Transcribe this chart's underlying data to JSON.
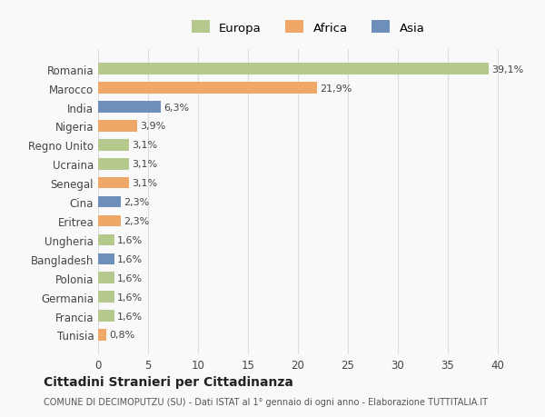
{
  "countries": [
    "Romania",
    "Marocco",
    "India",
    "Nigeria",
    "Regno Unito",
    "Ucraina",
    "Senegal",
    "Cina",
    "Eritrea",
    "Ungheria",
    "Bangladesh",
    "Polonia",
    "Germania",
    "Francia",
    "Tunisia"
  ],
  "values": [
    39.1,
    21.9,
    6.3,
    3.9,
    3.1,
    3.1,
    3.1,
    2.3,
    2.3,
    1.6,
    1.6,
    1.6,
    1.6,
    1.6,
    0.8
  ],
  "labels": [
    "39,1%",
    "21,9%",
    "6,3%",
    "3,9%",
    "3,1%",
    "3,1%",
    "3,1%",
    "2,3%",
    "2,3%",
    "1,6%",
    "1,6%",
    "1,6%",
    "1,6%",
    "1,6%",
    "0,8%"
  ],
  "continents": [
    "Europa",
    "Africa",
    "Asia",
    "Africa",
    "Europa",
    "Europa",
    "Africa",
    "Asia",
    "Africa",
    "Europa",
    "Asia",
    "Europa",
    "Europa",
    "Europa",
    "Africa"
  ],
  "colors": {
    "Europa": "#b5c98e",
    "Africa": "#f0a868",
    "Asia": "#6e8fba"
  },
  "legend_order": [
    "Europa",
    "Africa",
    "Asia"
  ],
  "title": "Cittadini Stranieri per Cittadinanza",
  "subtitle": "COMUNE DI DECIMOPUTZU (SU) - Dati ISTAT al 1° gennaio di ogni anno - Elaborazione TUTTITALIA.IT",
  "xlim": [
    0,
    42
  ],
  "xticks": [
    0,
    5,
    10,
    15,
    20,
    25,
    30,
    35,
    40
  ],
  "bg_color": "#f9f9f9",
  "grid_color": "#dddddd",
  "bar_height": 0.6
}
